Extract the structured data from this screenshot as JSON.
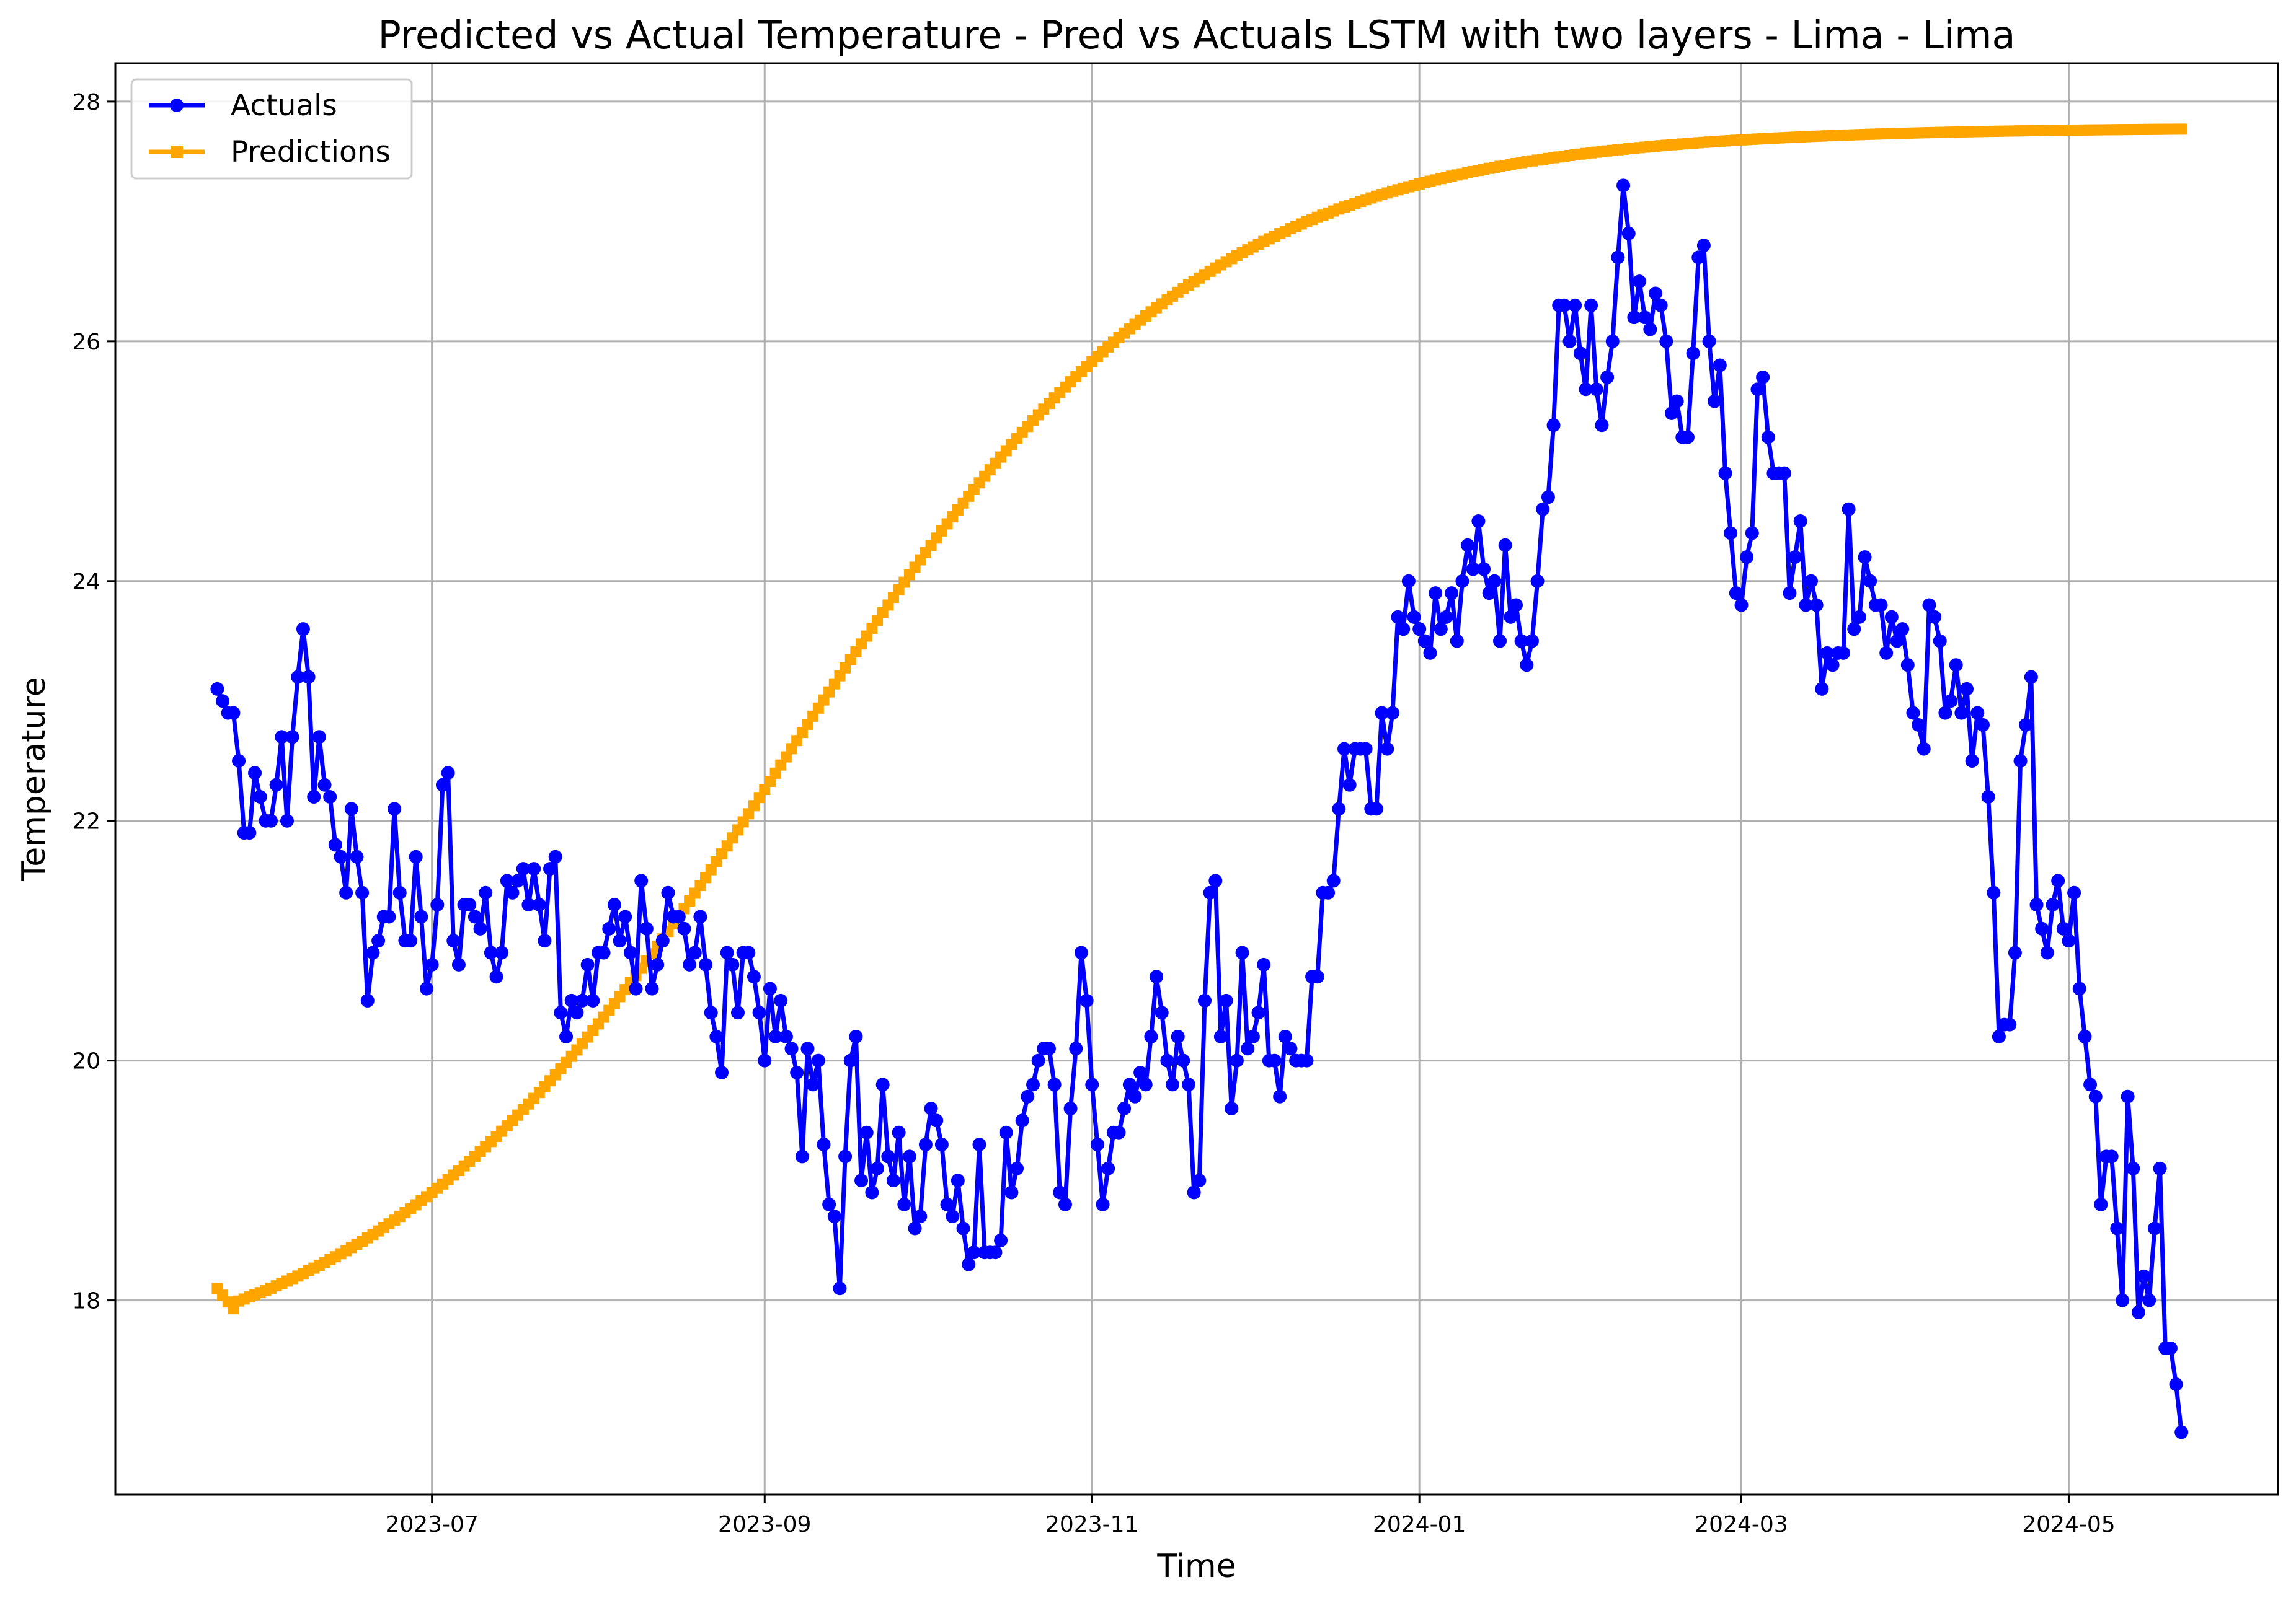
{
  "chart_data": {
    "type": "line",
    "title": "Predicted vs Actual Temperature - Pred vs Actuals LSTM with two layers - Lima - Lima",
    "xlabel": "Time",
    "ylabel": "Temperature",
    "grid": true,
    "legend_position": "top-left",
    "x_range": [
      "2023-05-03",
      "2024-06-09"
    ],
    "ylim": [
      16.38,
      28.32
    ],
    "x_ticks": [
      "2023-07-01",
      "2023-09-01",
      "2023-11-01",
      "2024-01-01",
      "2024-03-01",
      "2024-05-01"
    ],
    "x_tick_labels": [
      "2023-07",
      "2023-09",
      "2023-11",
      "2024-01",
      "2024-03",
      "2024-05"
    ],
    "y_ticks": [
      18,
      20,
      22,
      24,
      26,
      28
    ],
    "y_tick_labels": [
      "18",
      "20",
      "22",
      "24",
      "26",
      "28"
    ],
    "x_start": "2023-05-22",
    "series": [
      {
        "name": "Actuals",
        "color": "#0000ff",
        "marker": "circle",
        "values": [
          23.1,
          23.0,
          22.9,
          22.9,
          22.5,
          21.9,
          21.9,
          22.4,
          22.2,
          22.0,
          22.0,
          22.3,
          22.7,
          22.0,
          22.7,
          23.2,
          23.6,
          23.2,
          22.2,
          22.7,
          22.3,
          22.2,
          21.8,
          21.7,
          21.4,
          22.1,
          21.7,
          21.4,
          20.5,
          20.9,
          21.0,
          21.2,
          21.2,
          22.1,
          21.4,
          21.0,
          21.0,
          21.7,
          21.2,
          20.6,
          20.8,
          21.3,
          22.3,
          22.4,
          21.0,
          20.8,
          21.3,
          21.3,
          21.2,
          21.1,
          21.4,
          20.9,
          20.7,
          20.9,
          21.5,
          21.4,
          21.5,
          21.6,
          21.3,
          21.6,
          21.3,
          21.0,
          21.6,
          21.7,
          20.4,
          20.2,
          20.5,
          20.4,
          20.5,
          20.8,
          20.5,
          20.9,
          20.9,
          21.1,
          21.3,
          21.0,
          21.2,
          20.9,
          20.6,
          21.5,
          21.1,
          20.6,
          20.8,
          21.0,
          21.4,
          21.2,
          21.2,
          21.1,
          20.8,
          20.9,
          21.2,
          20.8,
          20.4,
          20.2,
          19.9,
          20.9,
          20.8,
          20.4,
          20.9,
          20.9,
          20.7,
          20.4,
          20.0,
          20.6,
          20.2,
          20.5,
          20.2,
          20.1,
          19.9,
          19.2,
          20.1,
          19.8,
          20.0,
          19.3,
          18.8,
          18.7,
          18.1,
          19.2,
          20.0,
          20.2,
          19.0,
          19.4,
          18.9,
          19.1,
          19.8,
          19.2,
          19.0,
          19.4,
          18.8,
          19.2,
          18.6,
          18.7,
          19.3,
          19.6,
          19.5,
          19.3,
          18.8,
          18.7,
          19.0,
          18.6,
          18.3,
          18.4,
          19.3,
          18.4,
          18.4,
          18.4,
          18.5,
          19.4,
          18.9,
          19.1,
          19.5,
          19.7,
          19.8,
          20.0,
          20.1,
          20.1,
          19.8,
          18.9,
          18.8,
          19.6,
          20.1,
          20.9,
          20.5,
          19.8,
          19.3,
          18.8,
          19.1,
          19.4,
          19.4,
          19.6,
          19.8,
          19.7,
          19.9,
          19.8,
          20.2,
          20.7,
          20.4,
          20.0,
          19.8,
          20.2,
          20.0,
          19.8,
          18.9,
          19.0,
          20.5,
          21.4,
          21.5,
          20.2,
          20.5,
          19.6,
          20.0,
          20.9,
          20.1,
          20.2,
          20.4,
          20.8,
          20.0,
          20.0,
          19.7,
          20.2,
          20.1,
          20.0,
          20.0,
          20.0,
          20.7,
          20.7,
          21.4,
          21.4,
          21.5,
          22.1,
          22.6,
          22.3,
          22.6,
          22.6,
          22.6,
          22.1,
          22.1,
          22.9,
          22.6,
          22.9,
          23.7,
          23.6,
          24.0,
          23.7,
          23.6,
          23.5,
          23.4,
          23.9,
          23.6,
          23.7,
          23.9,
          23.5,
          24.0,
          24.3,
          24.1,
          24.5,
          24.1,
          23.9,
          24.0,
          23.5,
          24.3,
          23.7,
          23.8,
          23.5,
          23.3,
          23.5,
          24.0,
          24.6,
          24.7,
          25.3,
          26.3,
          26.3,
          26.0,
          26.3,
          25.9,
          25.6,
          26.3,
          25.6,
          25.3,
          25.7,
          26.0,
          26.7,
          27.3,
          26.9,
          26.2,
          26.5,
          26.2,
          26.1,
          26.4,
          26.3,
          26.0,
          25.4,
          25.5,
          25.2,
          25.2,
          25.9,
          26.7,
          26.8,
          26.0,
          25.5,
          25.8,
          24.9,
          24.4,
          23.9,
          23.8,
          24.2,
          24.4,
          25.6,
          25.7,
          25.2,
          24.9,
          24.9,
          24.9,
          23.9,
          24.2,
          24.5,
          23.8,
          24.0,
          23.8,
          23.1,
          23.4,
          23.3,
          23.4,
          23.4,
          24.6,
          23.6,
          23.7,
          24.2,
          24.0,
          23.8,
          23.8,
          23.4,
          23.7,
          23.5,
          23.6,
          23.3,
          22.9,
          22.8,
          22.6,
          23.8,
          23.7,
          23.5,
          22.9,
          23.0,
          23.3,
          22.9,
          23.1,
          22.5,
          22.9,
          22.8,
          22.2,
          21.4,
          20.2,
          20.3,
          20.3,
          20.9,
          22.5,
          22.8,
          23.2,
          21.3,
          21.1,
          20.9,
          21.3,
          21.5,
          21.1,
          21.0,
          21.4,
          20.6,
          20.2,
          19.8,
          19.7,
          18.8,
          19.2,
          19.2,
          18.6,
          18.0,
          19.7,
          19.1,
          17.9,
          18.2,
          18.0,
          18.6,
          19.1,
          17.6,
          17.6,
          17.3,
          16.9
        ]
      },
      {
        "name": "Predictions",
        "color": "#ffa500",
        "marker": "square",
        "start_value": 18.1,
        "min_value": 17.93,
        "end_value": 27.77
      }
    ]
  }
}
